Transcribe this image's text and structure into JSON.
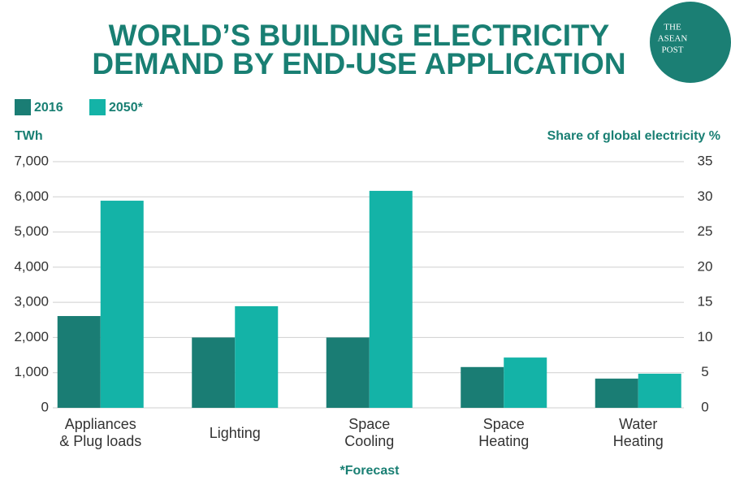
{
  "chart_data": {
    "type": "bar",
    "title": [
      "WORLD’S BUILDING ELECTRICITY",
      "DEMAND BY END-USE APPLICATION"
    ],
    "logo": [
      "THE",
      "ASEAN",
      "POST"
    ],
    "y_label": "TWh",
    "y2_label": "Share of global electricity %",
    "footnote": "*Forecast",
    "categories": [
      [
        "Appliances",
        "& Plug loads"
      ],
      [
        "Lighting"
      ],
      [
        "Space",
        "Cooling"
      ],
      [
        "Space",
        "Heating"
      ],
      [
        "Water",
        "Heating"
      ]
    ],
    "series": [
      {
        "name": "2016",
        "color": "#1a7d74",
        "values": [
          2610,
          2000,
          2000,
          1160,
          830
        ]
      },
      {
        "name": "2050*",
        "color": "#14b3a7",
        "values": [
          5890,
          2890,
          6170,
          1430,
          970
        ]
      }
    ],
    "ylim": [
      0,
      7000
    ],
    "yticks": [
      0,
      {
        "value": 1000,
        "label": "1,000"
      },
      {
        "value": 2000,
        "label": "2,000"
      },
      {
        "value": 3000,
        "label": "3,000"
      },
      {
        "value": 4000,
        "label": "4,000"
      },
      {
        "value": 5000,
        "label": "5,000"
      },
      {
        "value": 6000,
        "label": "6,000"
      },
      {
        "value": 7000,
        "label": "7,000"
      }
    ],
    "y2lim": [
      0,
      35
    ],
    "y2ticks": [
      0,
      5,
      10,
      15,
      20,
      25,
      30,
      35
    ],
    "grid": true
  }
}
